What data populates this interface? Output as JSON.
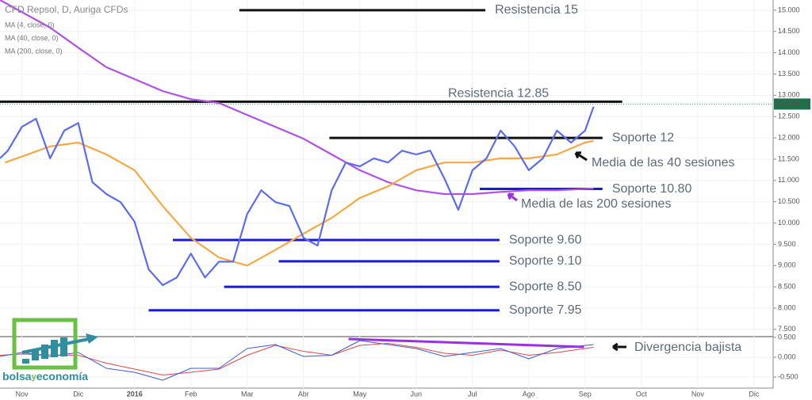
{
  "chart_data": [
    {
      "type": "line",
      "title": "CFD Repsol, D, Auriga CFDs",
      "xlim": [
        -0.39,
        13.34
      ],
      "xticks": [
        {
          "value": 0,
          "label": "Nov"
        },
        {
          "value": 1,
          "label": "Dic"
        },
        {
          "value": 2,
          "label": "2016"
        },
        {
          "value": 3,
          "label": "Feb"
        },
        {
          "value": 4,
          "label": "Mar"
        },
        {
          "value": 5,
          "label": "Abr"
        },
        {
          "value": 6,
          "label": "May"
        },
        {
          "value": 7,
          "label": "Jun"
        },
        {
          "value": 8,
          "label": "Jul"
        },
        {
          "value": 9,
          "label": "Ago"
        },
        {
          "value": 10,
          "label": "Sep"
        },
        {
          "value": 11,
          "label": "Oct"
        },
        {
          "value": 12,
          "label": "Nov"
        },
        {
          "value": 13,
          "label": "Dic"
        }
      ],
      "ylim": [
        7.33,
        15.24
      ],
      "yticks": [
        {
          "value": 7.5,
          "label": "7.500"
        },
        {
          "value": 8,
          "label": "8.000"
        },
        {
          "value": 8.5,
          "label": "8.500"
        },
        {
          "value": 9,
          "label": "9.000"
        },
        {
          "value": 9.5,
          "label": "9.500"
        },
        {
          "value": 10,
          "label": "10.000"
        },
        {
          "value": 10.5,
          "label": "10.500"
        },
        {
          "value": 11,
          "label": "11.000"
        },
        {
          "value": 11.5,
          "label": "11.500"
        },
        {
          "value": 12,
          "label": "12.000"
        },
        {
          "value": 12.5,
          "label": "12.500"
        },
        {
          "value": 13,
          "label": "13.000"
        },
        {
          "value": 13.5,
          "label": "13.500"
        },
        {
          "value": 14,
          "label": "14.000"
        },
        {
          "value": 14.5,
          "label": "14.500"
        },
        {
          "value": 15,
          "label": "15.000"
        }
      ],
      "grid": true,
      "series": [
        {
          "name": "MA (4, close, 0)",
          "color": "#5b6cf0",
          "x": [
            -0.39,
            -0.25,
            0,
            0.25,
            0.5,
            0.75,
            1,
            1.25,
            1.5,
            1.75,
            2,
            2.25,
            2.5,
            2.75,
            3,
            3.25,
            3.5,
            3.75,
            4,
            4.25,
            4.5,
            4.75,
            5,
            5.25,
            5.5,
            5.75,
            6,
            6.25,
            6.5,
            6.75,
            7,
            7.25,
            7.5,
            7.75,
            8,
            8.25,
            8.5,
            8.75,
            9,
            9.25,
            9.5,
            9.75,
            10,
            10.15
          ],
          "values": [
            11.52,
            11.7,
            12.26,
            12.45,
            11.52,
            12.17,
            12.35,
            10.96,
            10.68,
            10.49,
            10.03,
            8.91,
            8.54,
            8.72,
            9.28,
            8.72,
            9.09,
            9.09,
            10.21,
            10.77,
            10.49,
            10.4,
            9.65,
            9.47,
            10.77,
            11.42,
            11.33,
            11.52,
            11.42,
            11.7,
            11.61,
            11.7,
            11.05,
            10.31,
            11.24,
            11.52,
            12.17,
            11.8,
            11.24,
            11.52,
            12.17,
            11.89,
            12.17,
            12.73
          ]
        },
        {
          "name": "MA (40, close, 0)",
          "color": "#f7a844",
          "x": [
            -0.3,
            0.5,
            1,
            1.5,
            2,
            2.5,
            3,
            3.5,
            4,
            4.5,
            5,
            5.5,
            6,
            6.5,
            7,
            7.5,
            8,
            8.5,
            9,
            9.5,
            10,
            10.15
          ],
          "values": [
            11.42,
            11.8,
            11.89,
            11.61,
            11.24,
            10.4,
            9.65,
            9.19,
            9.0,
            9.37,
            9.75,
            10.12,
            10.59,
            10.86,
            11.24,
            11.42,
            11.42,
            11.52,
            11.52,
            11.61,
            11.89,
            11.93
          ]
        },
        {
          "name": "MA (200, close, 0)",
          "color": "#b150e8",
          "x": [
            -0.39,
            0.5,
            1,
            1.5,
            2,
            2.5,
            3,
            3.5,
            4,
            4.5,
            5,
            5.5,
            6,
            6.5,
            7,
            7.5,
            8,
            8.5,
            9,
            9.5,
            10.15
          ],
          "values": [
            15.24,
            14.59,
            14.12,
            13.66,
            13.38,
            13.1,
            12.91,
            12.82,
            12.54,
            12.26,
            11.98,
            11.61,
            11.24,
            10.96,
            10.77,
            10.68,
            10.68,
            10.73,
            10.77,
            10.77,
            10.81
          ]
        }
      ],
      "levels": [
        {
          "label": "Resistencia 15",
          "value": 15,
          "x": [
            3.86,
            8.23
          ],
          "color": "#111111"
        },
        {
          "label": "Resistencia 12.85",
          "value": 12.85,
          "x": [
            -0.39,
            10.66
          ],
          "color": "#111111"
        },
        {
          "label": "Soporte 12",
          "value": 12,
          "x": [
            5.46,
            10.31
          ],
          "color": "#111111"
        },
        {
          "label": "Soporte 10.80",
          "value": 10.8,
          "x": [
            8.13,
            10.31
          ],
          "color": "#1a1adb"
        },
        {
          "label": "Soporte 9.60",
          "value": 9.6,
          "x": [
            2.68,
            8.48
          ],
          "color": "#1a1adb"
        },
        {
          "label": "Soporte 9.10",
          "value": 9.1,
          "x": [
            4.56,
            8.48
          ],
          "color": "#1a1adb"
        },
        {
          "label": "Soporte 8.50",
          "value": 8.5,
          "x": [
            3.59,
            8.48
          ],
          "color": "#1a1adb"
        },
        {
          "label": "Soporte 7.95",
          "value": 7.95,
          "x": [
            2.25,
            8.48
          ],
          "color": "#1a1adb"
        }
      ],
      "last_value": 12.795,
      "annotations": [
        "Media de las 40 sesiones",
        "Media de las 200 sesiones"
      ]
    },
    {
      "type": "line",
      "xlim": [
        -0.39,
        13.34
      ],
      "ylim": [
        -0.78,
        0.52
      ],
      "yticks": [
        {
          "value": -0.5,
          "label": "-0.500"
        },
        {
          "value": 0,
          "label": "0.000"
        },
        {
          "value": 0.5,
          "label": "0.500"
        }
      ],
      "series": [
        {
          "color": "#3d5bd9",
          "x": [
            -0.39,
            0,
            0.5,
            1,
            1.5,
            2,
            2.5,
            3,
            3.5,
            4,
            4.5,
            5,
            5.5,
            6,
            6.5,
            7,
            7.5,
            8,
            8.5,
            9,
            9.5,
            10.15
          ],
          "values": [
            0.02,
            0.12,
            0.02,
            0.12,
            -0.28,
            -0.38,
            -0.58,
            -0.28,
            -0.28,
            0.22,
            0.32,
            0.02,
            0.05,
            0.42,
            0.32,
            0.22,
            0.02,
            0.12,
            0.22,
            -0.04,
            0.22,
            0.32
          ]
        },
        {
          "color": "#e04848",
          "x": [
            -0.39,
            0,
            0.5,
            1,
            1.5,
            2,
            2.5,
            3,
            3.5,
            4,
            4.5,
            5,
            5.5,
            6,
            6.5,
            7,
            7.5,
            8,
            8.5,
            9,
            9.5,
            10.15
          ],
          "values": [
            0.05,
            0.08,
            0.06,
            0.05,
            -0.15,
            -0.3,
            -0.45,
            -0.38,
            -0.3,
            0.05,
            0.3,
            0.15,
            0.05,
            0.3,
            0.35,
            0.25,
            0.1,
            0.05,
            0.18,
            0.05,
            0.12,
            0.25
          ]
        }
      ],
      "trend_line": {
        "x": [
          5.8,
          9.98
        ],
        "values": [
          0.46,
          0.26
        ],
        "color": "#9b30e0"
      },
      "annotation": "Divergencia bajista"
    }
  ],
  "logo": [
    "bolsa",
    "y",
    "economía"
  ]
}
